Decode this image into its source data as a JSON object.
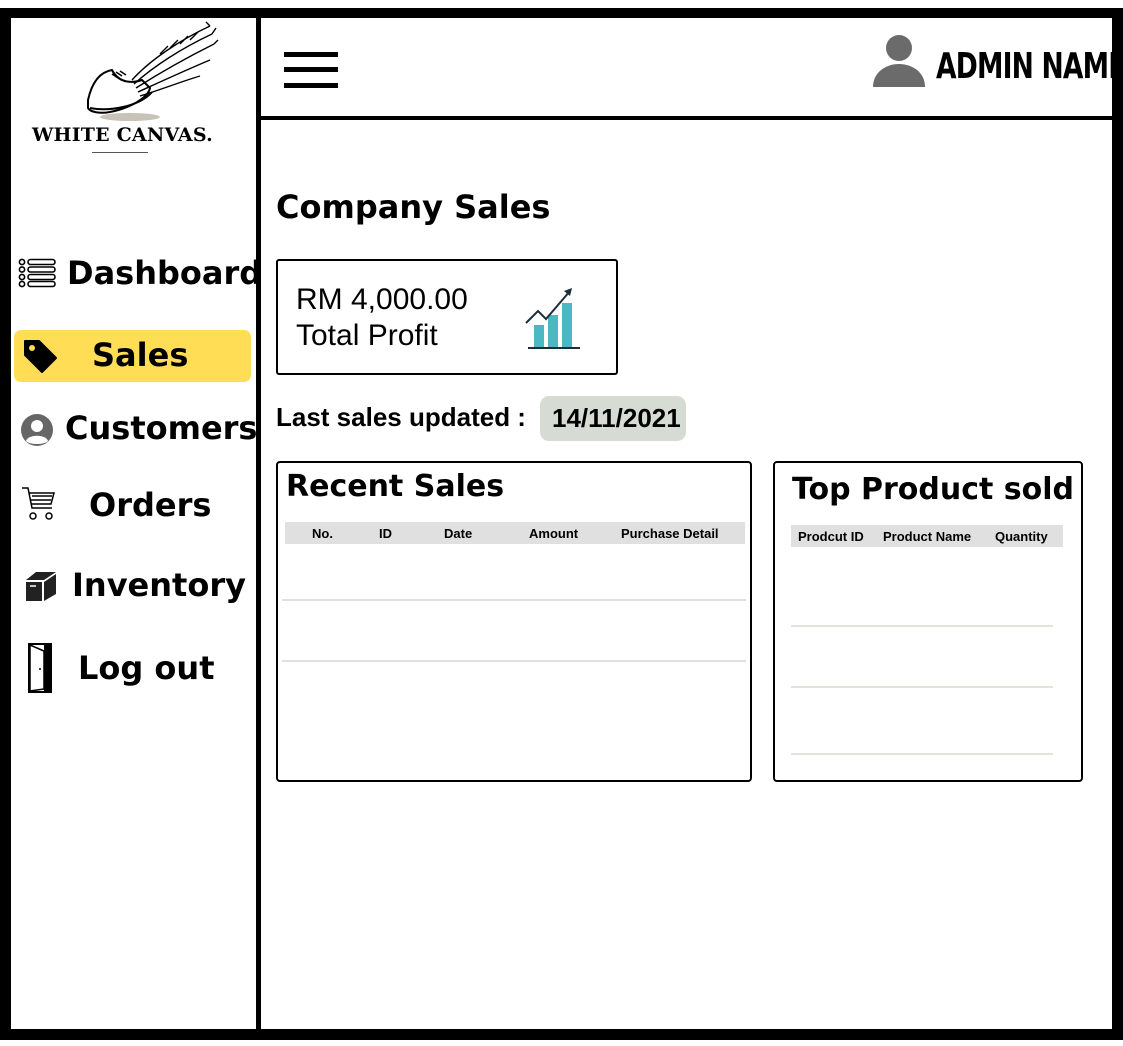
{
  "brand": {
    "name": "WHITE CANVAS."
  },
  "sidebar": {
    "items": [
      {
        "label": "Dashboard",
        "icon": "list-icon",
        "active": false
      },
      {
        "label": "Sales",
        "icon": "tag-icon",
        "active": true
      },
      {
        "label": "Customers",
        "icon": "user-circle-icon",
        "active": false
      },
      {
        "label": "Orders",
        "icon": "cart-icon",
        "active": false
      },
      {
        "label": "Inventory",
        "icon": "box-icon",
        "active": false
      },
      {
        "label": "Log out",
        "icon": "door-icon",
        "active": false
      }
    ],
    "active_color": "#ffdd55"
  },
  "header": {
    "menu_icon": "hamburger-icon",
    "user_icon": "user-icon",
    "admin_name": "ADMIN NAME"
  },
  "main": {
    "title": "Company Sales",
    "profit": {
      "value": "RM 4,000.00",
      "label": "Total Profit",
      "icon": "growth-chart-icon"
    },
    "last_updated": {
      "label": "Last sales updated :",
      "date": "14/11/2021"
    },
    "recent_sales": {
      "title": "Recent Sales",
      "columns": [
        "No.",
        "ID",
        "Date",
        "Amount",
        "Purchase Detail"
      ],
      "rows": []
    },
    "top_products": {
      "title": "Top Product sold",
      "columns": [
        "Prodcut ID",
        "Product Name",
        "Quantity"
      ],
      "rows": []
    }
  },
  "colors": {
    "chart_bars": "#4bb8c4",
    "date_badge": "#d6dcd4",
    "table_header": "#e0e0e0"
  }
}
